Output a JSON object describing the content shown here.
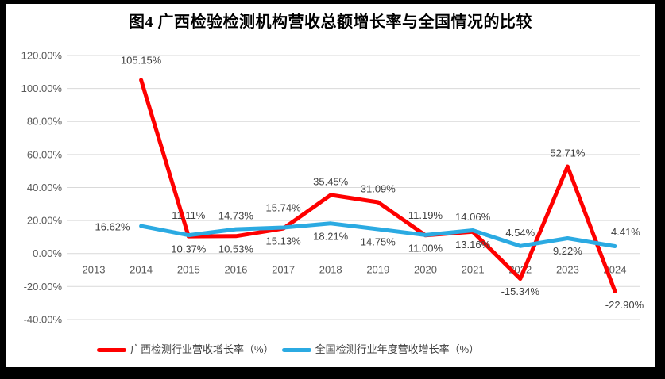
{
  "frame": {
    "border_color": "#000000",
    "canvas_color": "#FFFFFF"
  },
  "title": "图4 广西检验检测机构营收总额增长率与全国情况的比较",
  "chart_data": {
    "type": "line",
    "title": "图4 广西检验检测机构营收总额增长率与全国情况的比较",
    "categories": [
      "2013",
      "2014",
      "2015",
      "2016",
      "2017",
      "2018",
      "2019",
      "2020",
      "2021",
      "2022",
      "2023",
      "2024"
    ],
    "series": [
      {
        "name": "广西检测行业营收增长率（%）",
        "color": "#FE0000",
        "values": [
          null,
          105.15,
          10.37,
          10.53,
          15.13,
          35.45,
          31.09,
          11.0,
          13.16,
          -15.34,
          52.71,
          -22.9
        ],
        "data_labels": [
          null,
          "105.15%",
          "10.37%",
          "10.53%",
          "15.13%",
          "35.45%",
          "31.09%",
          "11.00%",
          "13.16%",
          "-15.34%",
          "52.71%",
          "-22.90%"
        ],
        "label_placements": [
          null,
          "above-far",
          "below",
          "below",
          "below",
          "above",
          "above",
          "below",
          "below",
          "below",
          "above",
          "below-right"
        ]
      },
      {
        "name": "全国检测行业年度营收增长率（%）",
        "color": "#2BAAE2",
        "values": [
          null,
          16.62,
          11.11,
          14.73,
          15.74,
          18.21,
          14.75,
          11.19,
          14.06,
          4.54,
          9.22,
          4.41
        ],
        "data_labels": [
          null,
          "16.62%",
          "11.11%",
          "14.73%",
          "15.74%",
          "18.21%",
          "14.75%",
          "11.19%",
          "14.06%",
          "4.54%",
          "9.22%",
          "4.41%"
        ],
        "label_placements": [
          null,
          "left",
          "above-far",
          "above",
          "above-far",
          "below",
          "below",
          "above-far",
          "above",
          "above",
          "below",
          "right"
        ]
      }
    ],
    "ylim": [
      -40,
      120
    ],
    "ytick_step": 20,
    "ytick_labels": [
      "120.00%",
      "100.00%",
      "80.00%",
      "60.00%",
      "40.00%",
      "20.00%",
      "0.00%",
      "-20.00%",
      "-40.00%"
    ],
    "grid": true,
    "gridline_color": "#D9D9D9",
    "axis_text_color": "#595959",
    "data_label_color": "#404040",
    "legend_position": "bottom"
  },
  "legend": {
    "items": [
      {
        "label": "广西检测行业营收增长率（%）",
        "color": "#FE0000"
      },
      {
        "label": "全国检测行业年度营收增长率（%）",
        "color": "#2BAAE2"
      }
    ]
  }
}
